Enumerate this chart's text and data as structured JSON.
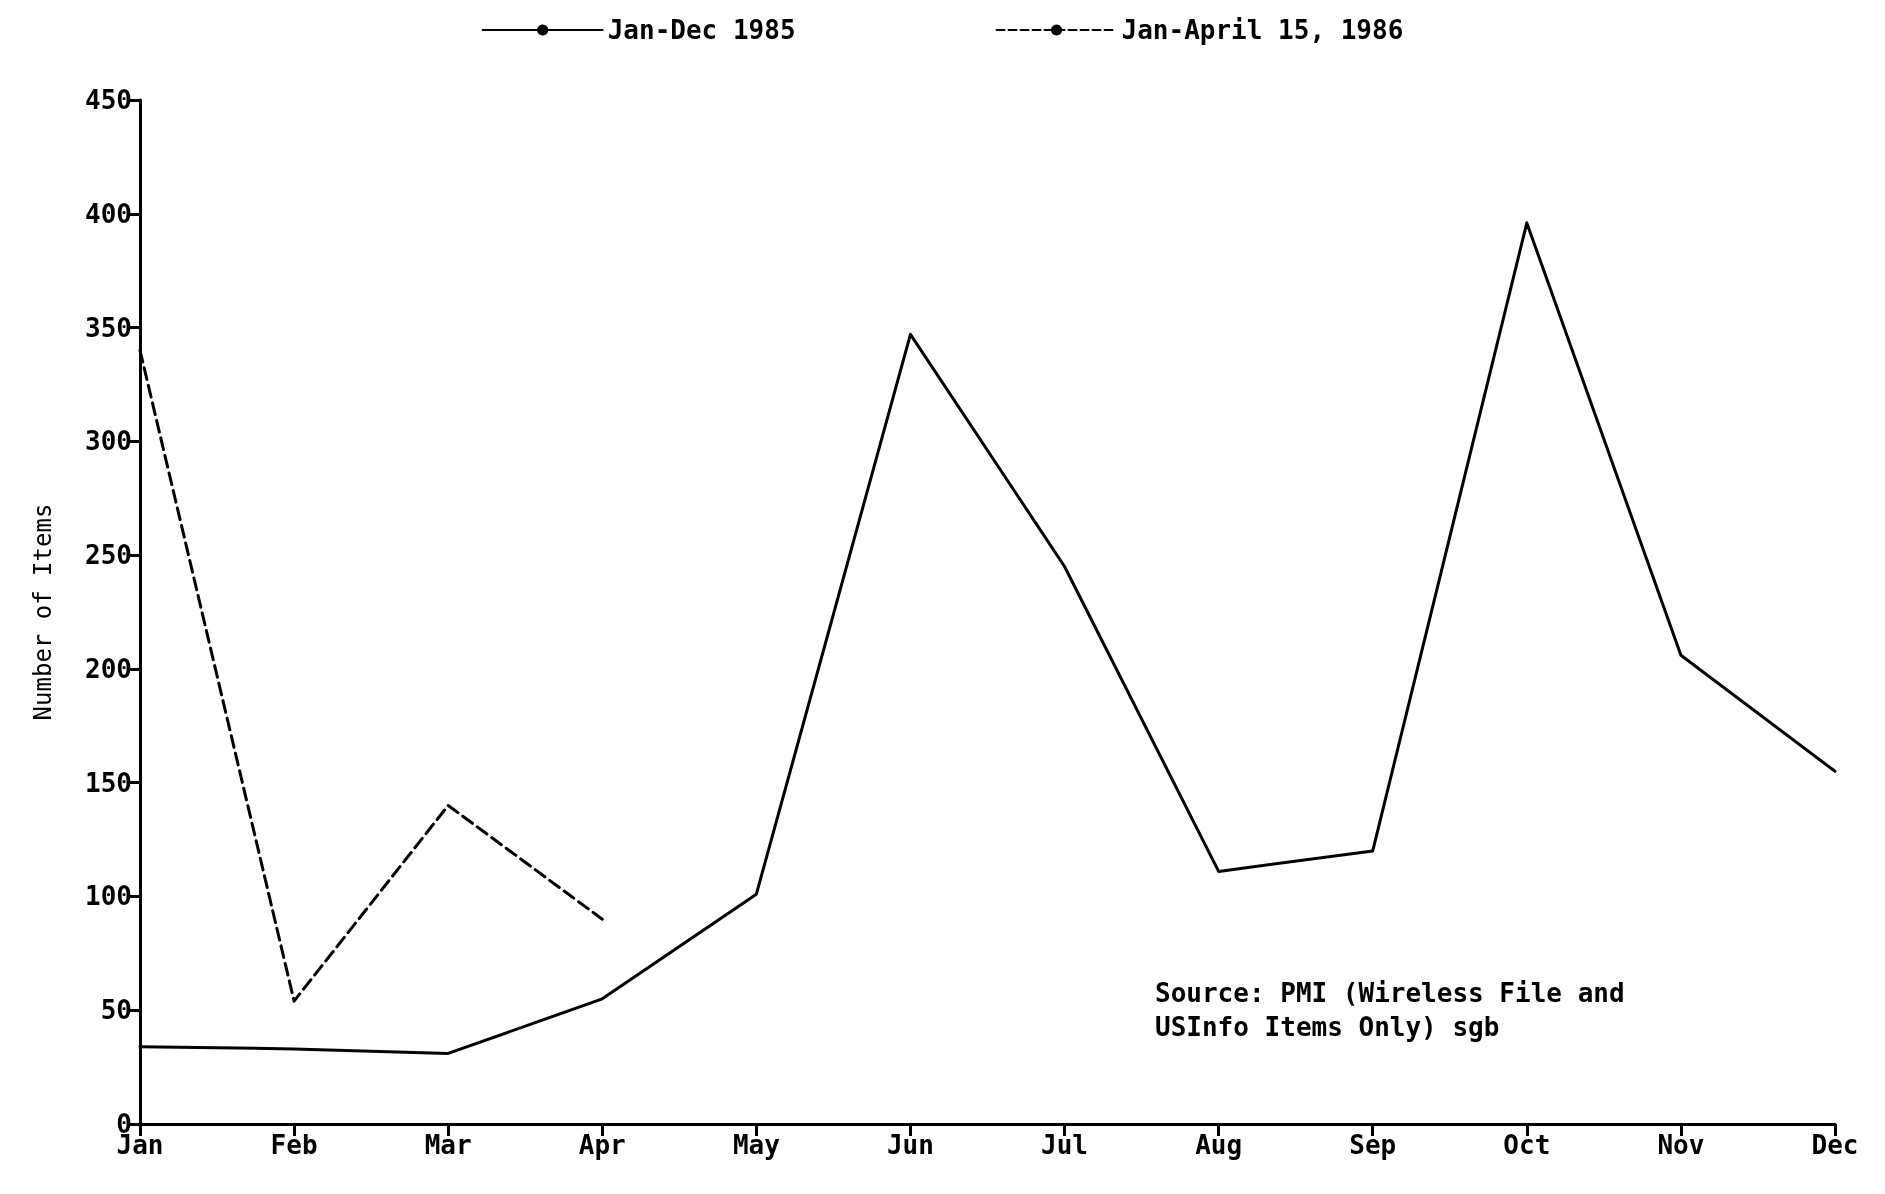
{
  "chart_data": {
    "type": "line",
    "ylabel": "Number of Items",
    "categories": [
      "Jan",
      "Feb",
      "Mar",
      "Apr",
      "May",
      "Jun",
      "Jul",
      "Aug",
      "Sep",
      "Oct",
      "Nov",
      "Dec"
    ],
    "series": [
      {
        "name": "Jan-Dec 1985",
        "color": "#000000",
        "line_style": "solid",
        "values": [
          34,
          33,
          31,
          55,
          101,
          347,
          245,
          111,
          120,
          396,
          206,
          155
        ]
      },
      {
        "name": "Jan-April 15, 1986",
        "color": "#000000",
        "line_style": "dashed",
        "values": [
          340,
          54,
          140,
          90,
          null,
          null,
          null,
          null,
          null,
          null,
          null,
          null
        ]
      }
    ],
    "ylim": [
      0,
      450
    ],
    "yticks": [
      0,
      50,
      100,
      150,
      200,
      250,
      300,
      350,
      400,
      450
    ],
    "grid": false,
    "legend": "top",
    "marker": "none",
    "annotations": [
      "Source: PMI (Wireless File and USInfo Items Only) sgb"
    ]
  }
}
